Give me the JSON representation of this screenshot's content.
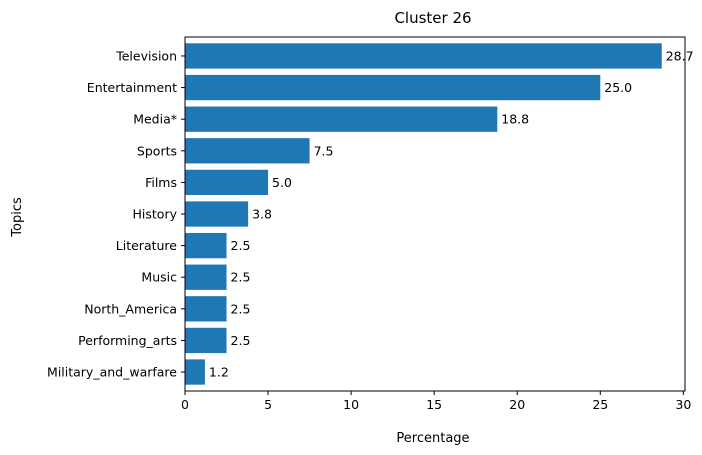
{
  "chart_data": {
    "type": "bar",
    "orientation": "horizontal",
    "title": "Cluster 26",
    "xlabel": "Percentage",
    "ylabel": "Topics",
    "categories": [
      "Television",
      "Entertainment",
      "Media*",
      "Sports",
      "Films",
      "History",
      "Literature",
      "Music",
      "North_America",
      "Performing_arts",
      "Military_and_warfare"
    ],
    "values": [
      28.7,
      25.0,
      18.8,
      7.5,
      5.0,
      3.8,
      2.5,
      2.5,
      2.5,
      2.5,
      1.2
    ],
    "value_labels": [
      "28.7",
      "25.0",
      "18.8",
      "7.5",
      "5.0",
      "3.8",
      "2.5",
      "2.5",
      "2.5",
      "2.5",
      "1.2"
    ],
    "xlim": [
      0,
      30.1
    ],
    "xticks": [
      0,
      5,
      10,
      15,
      20,
      25,
      30
    ],
    "grid": false,
    "bar_color": "#1f77b4"
  }
}
